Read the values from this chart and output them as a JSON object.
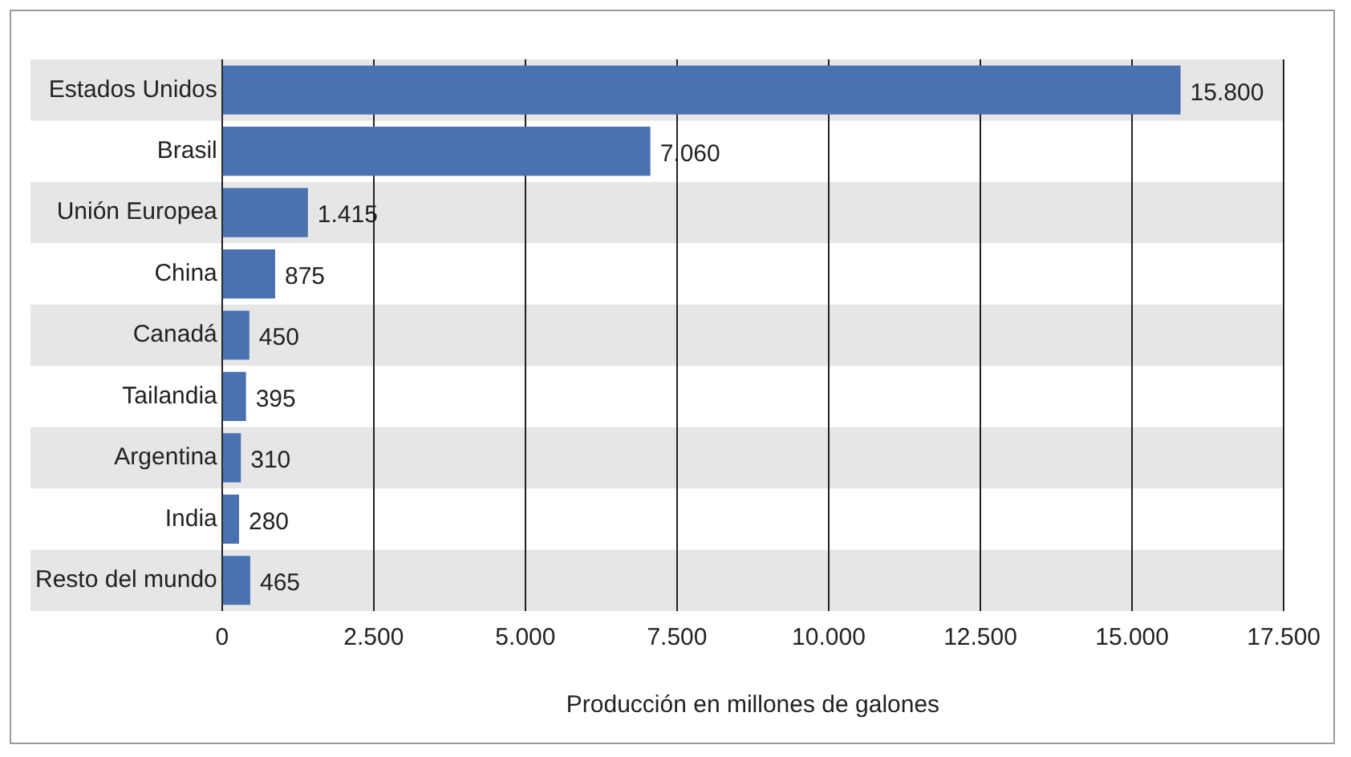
{
  "chart_data": {
    "type": "bar",
    "orientation": "horizontal",
    "xlabel": "Producción en millones de galones",
    "categories": [
      "Estados Unidos",
      "Brasil",
      "Unión Europea",
      "China",
      "Canadá",
      "Tailandia",
      "Argentina",
      "India",
      "Resto del mundo"
    ],
    "values": [
      15800,
      7060,
      1415,
      875,
      450,
      395,
      310,
      280,
      465
    ],
    "value_labels": [
      "15.800",
      "7.060",
      "1.415",
      "875",
      "450",
      "395",
      "310",
      "280",
      "465"
    ],
    "color": "#4a72b0",
    "xlim": [
      0,
      17500
    ],
    "xticks": [
      0,
      {
        "value": 2500,
        "label": "2.500"
      },
      {
        "value": 5000,
        "label": "5.000"
      },
      {
        "value": 7500,
        "label": "7.500"
      },
      {
        "value": 10000,
        "label": "10.000"
      },
      {
        "value": 12500,
        "label": "12.500"
      },
      {
        "value": 15000,
        "label": "15.000"
      },
      {
        "value": 17500,
        "label": "17.500"
      }
    ],
    "grid": "x",
    "legend": false
  }
}
